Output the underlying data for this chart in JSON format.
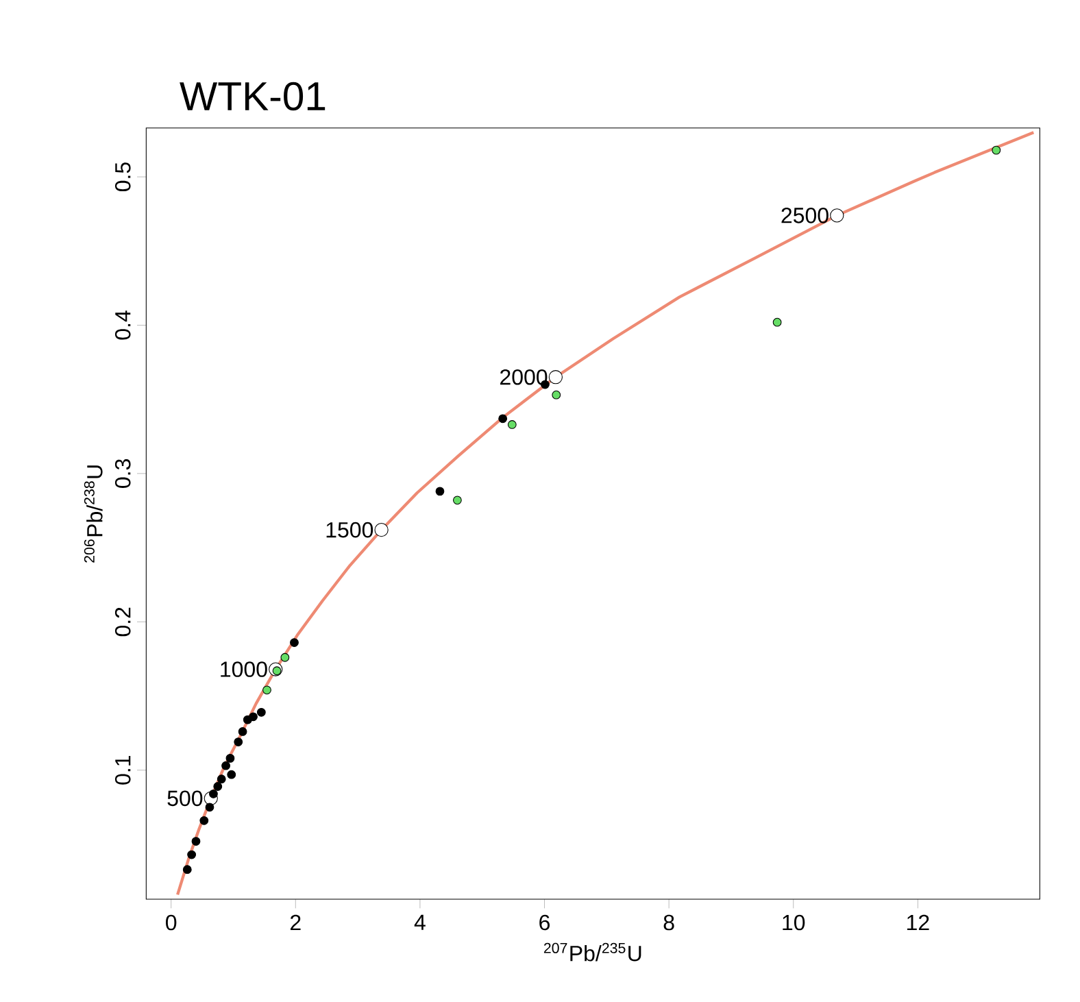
{
  "chart_data": {
    "type": "scatter",
    "title": "WTK-01",
    "xlabel": "$^{207}$Pb/$^{235}$U",
    "ylabel": "$^{206}$Pb/$^{238}$U",
    "xlim": [
      -0.4,
      13.96
    ],
    "ylim": [
      0.013,
      0.533
    ],
    "xticks": [
      0,
      2,
      4,
      6,
      8,
      10,
      12
    ],
    "yticks": [
      0.1,
      0.2,
      0.3,
      0.4,
      0.5
    ],
    "grid": false,
    "annotations": [
      {
        "text": "500",
        "x": 0.64,
        "y": 0.081
      },
      {
        "text": "1000",
        "x": 1.68,
        "y": 0.168
      },
      {
        "text": "1500",
        "x": 3.38,
        "y": 0.262
      },
      {
        "text": "2000",
        "x": 6.18,
        "y": 0.365
      },
      {
        "text": "2500",
        "x": 10.7,
        "y": 0.474
      }
    ],
    "series": [
      {
        "type": "line",
        "color": "#ee8a73",
        "marker": "none",
        "line_style": "solid",
        "x": [
          0.104,
          0.28,
          0.447,
          0.64,
          0.851,
          1.11,
          1.367,
          1.68,
          2.028,
          2.43,
          2.874,
          3.38,
          3.955,
          4.62,
          5.338,
          6.18,
          7.107,
          8.17,
          9.371,
          10.7,
          11.94,
          12.27,
          13.86
        ],
        "values": [
          0.016,
          0.04,
          0.06,
          0.081,
          0.102,
          0.123,
          0.145,
          0.168,
          0.191,
          0.214,
          0.238,
          0.262,
          0.287,
          0.312,
          0.338,
          0.365,
          0.391,
          0.419,
          0.445,
          0.474,
          0.497,
          0.503,
          0.53
        ]
      },
      {
        "color": "#ffffff",
        "marker": "circle",
        "x": [
          0.64,
          1.68,
          3.38,
          6.18,
          10.7
        ],
        "values": [
          0.081,
          0.168,
          0.262,
          0.365,
          0.474
        ]
      },
      {
        "color": "#000000",
        "marker": "circle",
        "x": [
          1.98,
          1.23,
          1.32,
          1.45,
          1.15,
          1.08,
          0.95,
          0.88,
          0.97,
          0.81,
          0.75,
          0.68,
          0.62,
          0.53,
          0.4,
          0.33,
          0.26,
          6.01,
          5.33,
          4.32
        ],
        "values": [
          0.186,
          0.134,
          0.136,
          0.139,
          0.126,
          0.119,
          0.108,
          0.103,
          0.097,
          0.094,
          0.089,
          0.084,
          0.075,
          0.066,
          0.052,
          0.043,
          0.033,
          0.36,
          0.337,
          0.288
        ]
      },
      {
        "color": "#66dd66",
        "marker": "circle",
        "x": [
          13.26,
          9.74,
          6.19,
          5.48,
          4.6,
          1.54,
          1.83,
          1.7
        ],
        "values": [
          0.518,
          0.402,
          0.353,
          0.333,
          0.282,
          0.154,
          0.176,
          0.167
        ]
      }
    ]
  }
}
